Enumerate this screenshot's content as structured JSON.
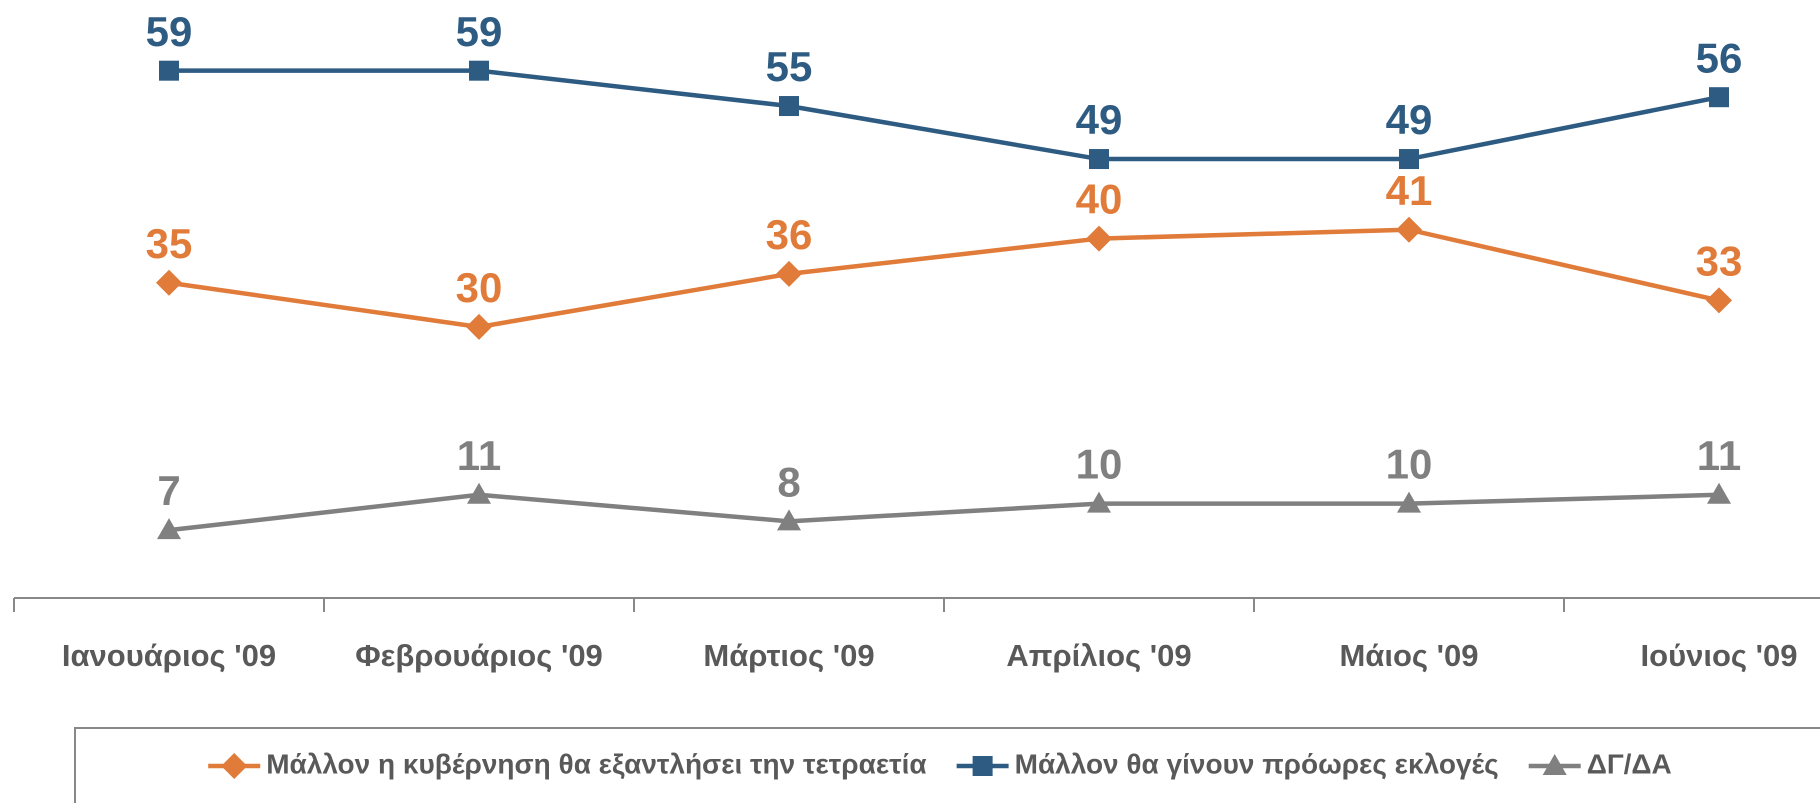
{
  "chart_data": {
    "type": "line",
    "categories": [
      "Ιανουάριος '09",
      "Φεβρουάριος '09",
      "Μάρτιος '09",
      "Απρίλιος '09",
      "Μάιος '09",
      "Ιούνιος '09"
    ],
    "series": [
      {
        "name": "Μάλλον η κυβέρνηση θα εξαντλήσει την τετραετία",
        "color": "#e07b39",
        "marker": "diamond",
        "values": [
          35,
          30,
          36,
          40,
          41,
          33
        ]
      },
      {
        "name": "Μάλλον θα γίνουν πρόωρες εκλογές",
        "color": "#2e5b82",
        "marker": "square",
        "values": [
          59,
          59,
          55,
          49,
          49,
          56
        ]
      },
      {
        "name": "ΔΓ/ΔΑ",
        "color": "#808080",
        "marker": "triangle",
        "values": [
          7,
          11,
          8,
          10,
          10,
          11
        ]
      }
    ],
    "ylim": [
      0,
      67
    ],
    "legend": "bottom"
  }
}
